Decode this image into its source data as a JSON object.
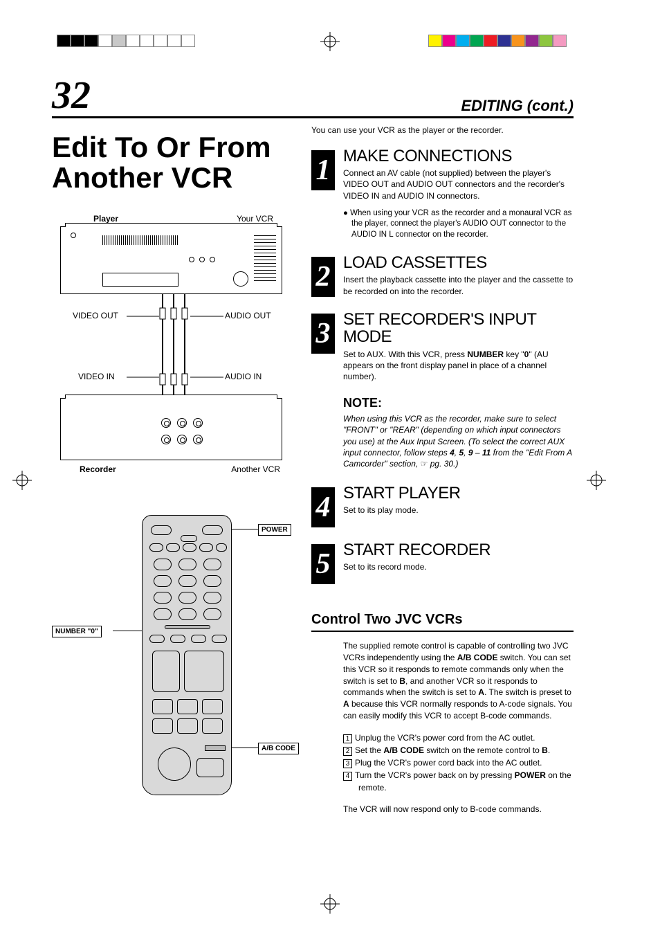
{
  "printmarks": {
    "left_swatches": [
      "#000000",
      "#000000",
      "#000000",
      "#ffffff",
      "#c8c8c8",
      "#ffffff",
      "#ffffff",
      "#ffffff",
      "#ffffff",
      "#ffffff"
    ],
    "right_swatches": [
      "#fff200",
      "#ec008c",
      "#00aeef",
      "#00a651",
      "#ed1c24",
      "#2e3192",
      "#f7941d",
      "#92278f",
      "#8dc63f",
      "#f49ac1"
    ]
  },
  "page": {
    "number": "32",
    "header_section": "EDITING (cont.)",
    "title": "Edit To Or From Another VCR"
  },
  "diagram_vcr": {
    "top_label_left": "Player",
    "top_label_right": "Your VCR",
    "mid_label_video_out": "VIDEO OUT",
    "mid_label_audio_out": "AUDIO OUT",
    "mid_label_video_in": "VIDEO IN",
    "mid_label_audio_in": "AUDIO IN",
    "bot_label_left": "Recorder",
    "bot_label_right": "Another VCR"
  },
  "diagram_remote": {
    "callout_power": "POWER",
    "callout_number0": "NUMBER \"0\"",
    "callout_abcode": "A/B CODE"
  },
  "intro": "You can use your VCR as the player or the recorder.",
  "steps": [
    {
      "num": "1",
      "title": "MAKE CONNECTIONS",
      "text": "Connect an AV cable (not supplied) between the player's VIDEO OUT and AUDIO OUT connectors and the recorder's VIDEO IN and AUDIO IN connectors.",
      "bullet": "When using your VCR as the recorder and a monaural VCR as the player, connect the player's AUDIO OUT connector to the AUDIO IN L connector on the recorder."
    },
    {
      "num": "2",
      "title": "LOAD CASSETTES",
      "text": "Insert the playback cassette into the player and the cassette to be recorded on into the recorder."
    },
    {
      "num": "3",
      "title": "SET RECORDER'S INPUT MODE",
      "text_html": "Set to AUX. With this VCR, press <b>NUMBER</b> key \"<b>0</b>\" (AU appears on the front display panel in place of a channel number)."
    },
    {
      "num": "4",
      "title": "START PLAYER",
      "text": "Set to its play mode."
    },
    {
      "num": "5",
      "title": "START RECORDER",
      "text": "Set to its record mode."
    }
  ],
  "note": {
    "heading": "NOTE:",
    "text_html": "When using this VCR as the recorder, make sure to select \"FRONT\" or \"REAR\" (depending on which input connectors you use) at the Aux Input Screen. (To select the correct AUX input connector, follow steps <span class='b'>4</span>, <span class='b'>5</span>, <span class='b'>9</span> – <span class='b'>11</span> from the \"Edit From A Camcorder\" section, <span class='icon-hand'>☞</span> pg. 30.)"
  },
  "control_section": {
    "title": "Control Two JVC VCRs",
    "para_html": "The supplied remote control is capable of controlling two JVC VCRs independently using the <span class='b'>A/B CODE</span> switch. You can set this VCR so it responds to remote commands only when the switch is set to <span class='b'>B</span>, and another VCR so it responds to commands when the switch is set to <span class='b'>A</span>. The switch is preset to <span class='b'>A</span> because this VCR normally responds to A-code signals. You can easily modify this VCR to accept B-code commands.",
    "items": [
      {
        "n": "1",
        "html": "Unplug the VCR's power cord from the AC outlet."
      },
      {
        "n": "2",
        "html": "Set the <span class='b'>A/B CODE</span> switch on the remote control to <span class='b'>B</span>."
      },
      {
        "n": "3",
        "html": "Plug the VCR's power cord back into the AC outlet."
      },
      {
        "n": "4",
        "html": "Turn the VCR's power back on by pressing <span class='b'>POWER</span> on the remote."
      }
    ],
    "footer": "The VCR will now respond only to B-code commands."
  }
}
